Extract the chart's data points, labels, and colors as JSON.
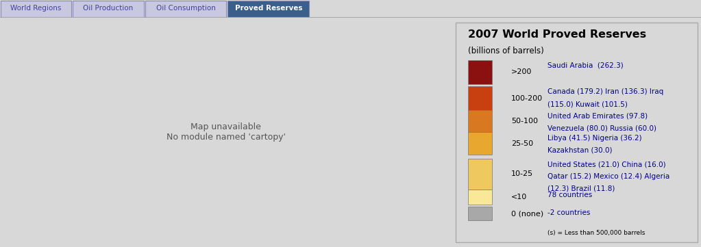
{
  "title": "2007 World Proved Reserves",
  "subtitle": "(billions of barrels)",
  "tab_labels": [
    "World Regions",
    "Oil Production",
    "Oil Consumption",
    "Proved Reserves"
  ],
  "tab_active": 3,
  "tab_bg_active": "#3a5f8a",
  "tab_bg_inactive": "#c8c8e0",
  "tab_text_active": "#ffffff",
  "tab_text_inactive": "#4040a0",
  "tab_border": "#8888bb",
  "legend_entries": [
    {
      "color": "#8b1010",
      "range": ">200",
      "lines": [
        "Saudi Arabia  (262.3)"
      ]
    },
    {
      "color": "#c84010",
      "range": "100-200",
      "lines": [
        "Canada (179.2) Iran (136.3) Iraq",
        "(115.0) Kuwait (101.5)"
      ]
    },
    {
      "color": "#d87820",
      "range": "50-100",
      "lines": [
        "United Arab Emirates (97.8)",
        "Venezuela (80.0) Russia (60.0)"
      ]
    },
    {
      "color": "#e8a830",
      "range": "25-50",
      "lines": [
        "Libya (41.5) Nigeria (36.2)",
        "Kazakhstan (30.0)"
      ]
    },
    {
      "color": "#f0c860",
      "range": "10-25",
      "lines": [
        "United States (21.0) China (16.0)",
        "Qatar (15.2) Mexico (12.4) Algeria",
        "(12.3) Brazil (11.8)"
      ]
    },
    {
      "color": "#f8e898",
      "range": "<10",
      "lines": [
        "78 countries"
      ]
    },
    {
      "color": "#a8a8a8",
      "range": "0 (none)",
      "lines": [
        "-2 countries"
      ]
    }
  ],
  "footnote": "(s) = Less than 500,000 barrels",
  "map_bg": "#b8d0e8",
  "legend_bg": "#ffffff",
  "page_bg": "#d8d8d8",
  "country_colors": {
    "Saudi Arabia": "#8b1010",
    "Canada": "#c84010",
    "Iran": "#c84010",
    "Iraq": "#c84010",
    "Kuwait": "#c84010",
    "United Arab Emirates": "#d87820",
    "Venezuela": "#d87820",
    "Russia": "#d87820",
    "Libya": "#e8a830",
    "Nigeria": "#e8a830",
    "Kazakhstan": "#e8a830",
    "United States of America": "#f0c860",
    "China": "#f0c860",
    "Qatar": "#f0c860",
    "Mexico": "#f0c860",
    "Algeria": "#f0c860",
    "Brazil": "#f0c860",
    "Oman": "#f0c860",
    "Angola": "#f0c860",
    "Ecuador": "#f0c860",
    "Sudan": "#f0c860",
    "Syria": "#f0c860",
    "Yemen": "#f0c860",
    "Azerbaijan": "#f0c860"
  },
  "no_data_color": "#a8a8a8",
  "default_color": "#f8e898",
  "edge_color": "#888060",
  "edge_width": 0.3
}
